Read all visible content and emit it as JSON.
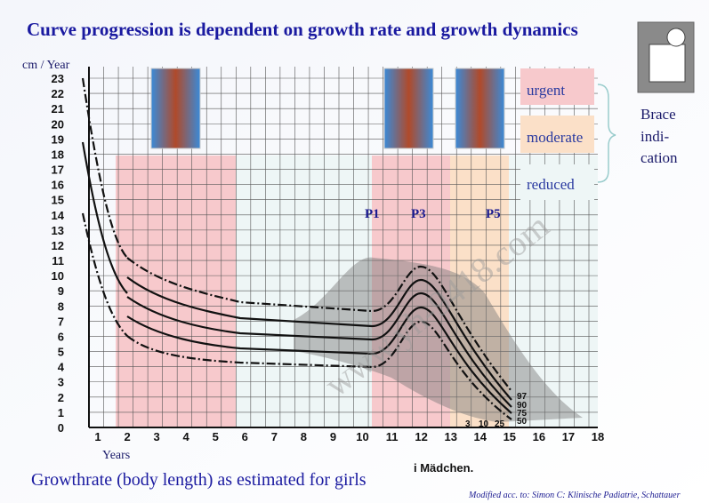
{
  "title": "Curve progression is dependent on growth rate and growth dynamics",
  "y_axis_label": "cm / Year",
  "x_axis_label": "Years",
  "y_ticks": [
    "0",
    "1",
    "2",
    "3",
    "4",
    "5",
    "6",
    "7",
    "8",
    "9",
    "10",
    "11",
    "12",
    "13",
    "14",
    "15",
    "16",
    "17",
    "18",
    "19",
    "20",
    "21",
    "22",
    "23"
  ],
  "x_ticks": [
    "1",
    "2",
    "3",
    "4",
    "5",
    "6",
    "7",
    "8",
    "9",
    "10",
    "11",
    "12",
    "13",
    "14",
    "15",
    "16",
    "17",
    "18"
  ],
  "phases": [
    "P1",
    "P3",
    "P5"
  ],
  "legend": [
    "urgent",
    "moderate",
    "reduced"
  ],
  "brace_label": [
    "Brace",
    "indi-",
    "cation"
  ],
  "percentiles_right": [
    "97",
    "90",
    "75",
    "50"
  ],
  "percentiles_bottom": [
    "3",
    "10",
    "25"
  ],
  "chart_caption": "i Mädchen.",
  "subtitle": "Growthrate (body length) as estimated for girls",
  "footer": "Modified acc. to: Simon C: Klinische Padiatrie, Schattauer",
  "watermark": "www.yh-9418.com"
}
